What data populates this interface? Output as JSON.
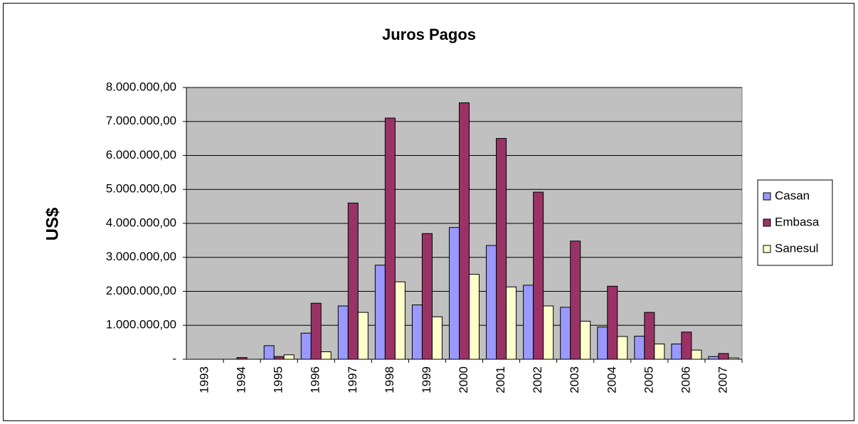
{
  "chart_data": {
    "type": "bar",
    "title": "Juros Pagos",
    "y_label": "US$",
    "categories": [
      "1993",
      "1994",
      "1995",
      "1996",
      "1997",
      "1998",
      "1999",
      "2000",
      "2001",
      "2002",
      "2003",
      "2004",
      "2005",
      "2006",
      "2007"
    ],
    "series": [
      {
        "name": "Casan",
        "color": "#9999ff",
        "values": [
          0,
          0,
          400000,
          770000,
          1570000,
          2770000,
          1600000,
          3880000,
          3350000,
          2180000,
          1530000,
          950000,
          680000,
          450000,
          80000
        ]
      },
      {
        "name": "Embasa",
        "color": "#993366",
        "values": [
          0,
          50000,
          80000,
          1650000,
          4600000,
          7100000,
          3700000,
          7550000,
          6500000,
          4920000,
          3480000,
          2150000,
          1380000,
          800000,
          170000
        ]
      },
      {
        "name": "Sanesul",
        "color": "#ffffcc",
        "values": [
          0,
          0,
          130000,
          220000,
          1380000,
          2280000,
          1250000,
          2500000,
          2130000,
          1570000,
          1120000,
          670000,
          450000,
          270000,
          40000
        ]
      }
    ],
    "ylim": [
      0,
      8000000
    ],
    "yticks": [
      {
        "value": 0,
        "label": "-"
      },
      {
        "value": 1000000,
        "label": "1.000.000,00"
      },
      {
        "value": 2000000,
        "label": "2.000.000,00"
      },
      {
        "value": 3000000,
        "label": "3.000.000,00"
      },
      {
        "value": 4000000,
        "label": "4.000.000,00"
      },
      {
        "value": 5000000,
        "label": "5.000.000,00"
      },
      {
        "value": 6000000,
        "label": "6.000.000,00"
      },
      {
        "value": 7000000,
        "label": "7.000.000,00"
      },
      {
        "value": 8000000,
        "label": "8.000.000,00"
      }
    ],
    "grid": true,
    "legend": "right",
    "plot_background": "#c0c0c0"
  }
}
